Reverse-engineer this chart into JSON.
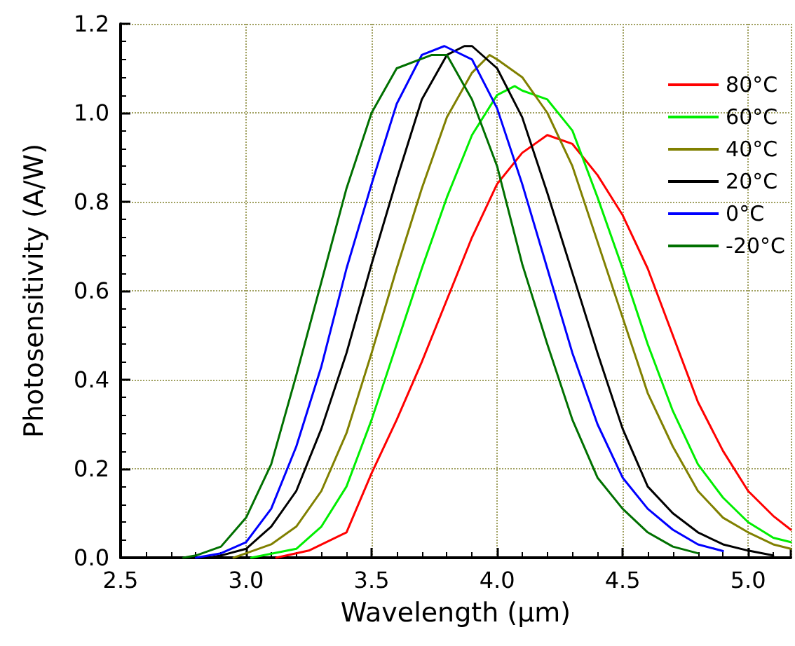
{
  "chart_data": {
    "type": "line",
    "xlabel": "Wavelength (µm)",
    "ylabel": "Photosensitivity (A/W)",
    "xlim": [
      2.5,
      5.17
    ],
    "ylim": [
      0,
      1.2
    ],
    "xticks": [
      2.5,
      {
        "value": 3,
        "label": "3.0"
      },
      3.5,
      {
        "value": 4,
        "label": "4.0"
      },
      4.5,
      {
        "value": 5,
        "label": "5.0"
      }
    ],
    "yticks": [
      {
        "value": 0,
        "label": "0.0"
      },
      0.2,
      0.4,
      0.6,
      0.8,
      {
        "value": 1,
        "label": "1.0"
      },
      1.2
    ],
    "grid": true,
    "legend": "top right",
    "marker": "none",
    "line_style": "solid",
    "series": [
      {
        "name": "80°C",
        "color": "#ff0000",
        "x": [
          3.12,
          3.25,
          3.4,
          3.5,
          3.6,
          3.7,
          3.8,
          3.9,
          4.0,
          4.1,
          4.2,
          4.3,
          4.4,
          4.5,
          4.6,
          4.7,
          4.8,
          4.9,
          5.0,
          5.1,
          5.17
        ],
        "values": [
          0,
          0.016,
          0.057,
          0.19,
          0.31,
          0.44,
          0.58,
          0.72,
          0.84,
          0.91,
          0.95,
          0.93,
          0.86,
          0.77,
          0.65,
          0.5,
          0.35,
          0.24,
          0.15,
          0.094,
          0.063
        ]
      },
      {
        "name": "60°C",
        "color": "#00ee00",
        "x": [
          3.02,
          3.2,
          3.3,
          3.4,
          3.5,
          3.6,
          3.7,
          3.8,
          3.9,
          4.0,
          4.07,
          4.1,
          4.2,
          4.3,
          4.4,
          4.5,
          4.6,
          4.7,
          4.8,
          4.9,
          5.0,
          5.1,
          5.17
        ],
        "values": [
          0,
          0.02,
          0.07,
          0.16,
          0.31,
          0.48,
          0.65,
          0.81,
          0.95,
          1.04,
          1.06,
          1.05,
          1.03,
          0.96,
          0.81,
          0.65,
          0.48,
          0.33,
          0.21,
          0.135,
          0.08,
          0.045,
          0.035
        ]
      },
      {
        "name": "40°C",
        "color": "#808000",
        "x": [
          2.95,
          3.0,
          3.1,
          3.2,
          3.3,
          3.4,
          3.5,
          3.6,
          3.7,
          3.8,
          3.9,
          3.97,
          4.0,
          4.1,
          4.2,
          4.3,
          4.4,
          4.5,
          4.6,
          4.7,
          4.8,
          4.9,
          5.0,
          5.1,
          5.17
        ],
        "values": [
          0,
          0.01,
          0.03,
          0.07,
          0.15,
          0.28,
          0.46,
          0.65,
          0.83,
          0.99,
          1.09,
          1.13,
          1.12,
          1.08,
          1.0,
          0.88,
          0.71,
          0.54,
          0.37,
          0.25,
          0.15,
          0.09,
          0.057,
          0.03,
          0.02
        ]
      },
      {
        "name": "20°C",
        "color": "#000000",
        "x": [
          2.85,
          2.9,
          3.0,
          3.1,
          3.2,
          3.3,
          3.4,
          3.5,
          3.6,
          3.7,
          3.8,
          3.87,
          3.9,
          4.0,
          4.1,
          4.2,
          4.3,
          4.4,
          4.5,
          4.6,
          4.7,
          4.8,
          4.9,
          5.0,
          5.1
        ],
        "values": [
          0,
          0.005,
          0.02,
          0.07,
          0.15,
          0.29,
          0.46,
          0.66,
          0.85,
          1.03,
          1.13,
          1.15,
          1.15,
          1.1,
          0.99,
          0.82,
          0.64,
          0.46,
          0.29,
          0.16,
          0.1,
          0.057,
          0.03,
          0.016,
          0.005
        ]
      },
      {
        "name": "0°C",
        "color": "#0000ff",
        "x": [
          2.8,
          2.9,
          3.0,
          3.1,
          3.2,
          3.3,
          3.4,
          3.5,
          3.6,
          3.7,
          3.79,
          3.9,
          4.0,
          4.1,
          4.2,
          4.3,
          4.4,
          4.5,
          4.6,
          4.7,
          4.8,
          4.9
        ],
        "values": [
          0,
          0.01,
          0.035,
          0.11,
          0.25,
          0.43,
          0.65,
          0.84,
          1.02,
          1.13,
          1.15,
          1.12,
          1.01,
          0.84,
          0.65,
          0.46,
          0.3,
          0.18,
          0.11,
          0.063,
          0.03,
          0.015
        ]
      },
      {
        "name": "-20°C",
        "color": "#007000",
        "x": [
          2.75,
          2.8,
          2.9,
          3.0,
          3.1,
          3.2,
          3.3,
          3.4,
          3.5,
          3.6,
          3.74,
          3.8,
          3.9,
          4.0,
          4.1,
          4.2,
          4.3,
          4.4,
          4.5,
          4.6,
          4.7,
          4.8
        ],
        "values": [
          0,
          0.005,
          0.025,
          0.09,
          0.21,
          0.41,
          0.62,
          0.83,
          1.0,
          1.1,
          1.13,
          1.13,
          1.03,
          0.88,
          0.66,
          0.48,
          0.31,
          0.18,
          0.11,
          0.057,
          0.025,
          0.01
        ]
      }
    ]
  }
}
